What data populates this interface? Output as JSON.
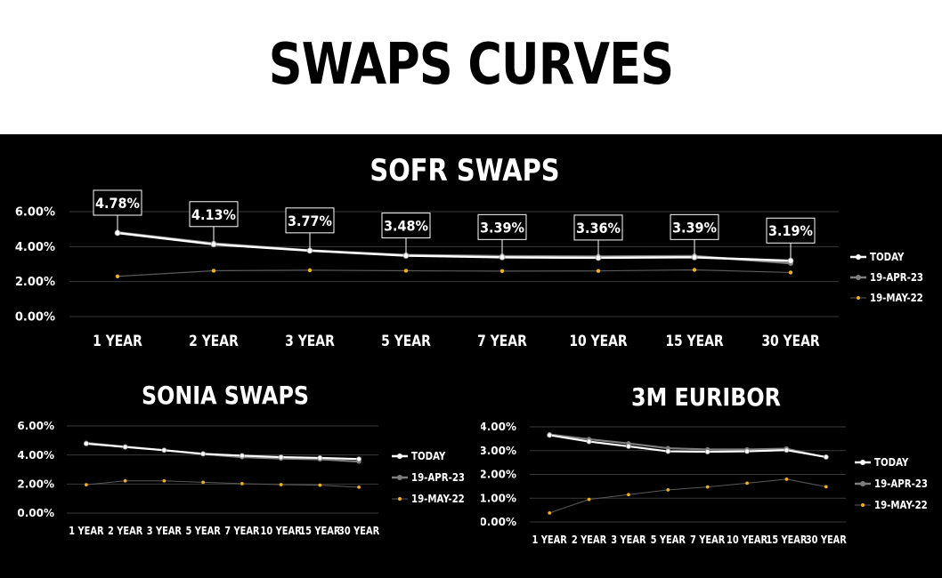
{
  "page_title": "SWAPS CURVES",
  "colors": {
    "today": "#ffffff",
    "apr": "#7f7f7f",
    "may": "#f2b01e",
    "background": "#000000",
    "grid": "#3a3a3a"
  },
  "chart_data": [
    {
      "id": "sofr",
      "type": "line",
      "title": "SOFR SWAPS",
      "categories": [
        "1 YEAR",
        "2 YEAR",
        "3 YEAR",
        "5 YEAR",
        "7 YEAR",
        "10 YEAR",
        "15 YEAR",
        "30 YEAR"
      ],
      "y_ticks": [
        "0.00%",
        "2.00%",
        "4.00%",
        "6.00%"
      ],
      "ylim": [
        0,
        6
      ],
      "series": [
        {
          "name": "TODAY",
          "values": [
            4.78,
            4.13,
            3.77,
            3.48,
            3.39,
            3.36,
            3.39,
            3.19
          ]
        },
        {
          "name": "19-APR-23",
          "values": [
            4.82,
            4.18,
            3.78,
            3.52,
            3.46,
            3.43,
            3.46,
            3.05
          ]
        },
        {
          "name": "19-MAY-22",
          "values": [
            2.3,
            2.62,
            2.65,
            2.62,
            2.6,
            2.61,
            2.67,
            2.52
          ]
        }
      ],
      "data_labels": [
        "4.78%",
        "4.13%",
        "3.77%",
        "3.48%",
        "3.39%",
        "3.36%",
        "3.39%",
        "3.19%"
      ],
      "grid": true,
      "legend": "right"
    },
    {
      "id": "sonia",
      "type": "line",
      "title": "SONIA SWAPS",
      "categories": [
        "1 YEAR",
        "2 YEAR",
        "3 YEAR",
        "5 YEAR",
        "7 YEAR",
        "10 YEAR",
        "15 YEAR",
        "30 YEAR"
      ],
      "y_ticks": [
        "0.00%",
        "2.00%",
        "4.00%",
        "6.00%"
      ],
      "ylim": [
        0,
        6
      ],
      "series": [
        {
          "name": "TODAY",
          "values": [
            4.78,
            4.55,
            4.33,
            4.08,
            3.95,
            3.85,
            3.8,
            3.72
          ]
        },
        {
          "name": "19-APR-23",
          "values": [
            4.83,
            4.58,
            4.33,
            4.05,
            3.85,
            3.75,
            3.7,
            3.55
          ]
        },
        {
          "name": "19-MAY-22",
          "values": [
            1.95,
            2.22,
            2.22,
            2.12,
            2.03,
            1.96,
            1.92,
            1.78
          ]
        }
      ],
      "grid": true,
      "legend": "right"
    },
    {
      "id": "euribor",
      "type": "line",
      "title": "3M EURIBOR",
      "categories": [
        "1 YEAR",
        "2 YEAR",
        "3 YEAR",
        "5 YEAR",
        "7 YEAR",
        "10 YEAR",
        "15 YEAR",
        "30 YEAR"
      ],
      "y_ticks": [
        "0.00%",
        "1.00%",
        "2.00%",
        "3.00%",
        "4.00%"
      ],
      "ylim": [
        0,
        4
      ],
      "series": [
        {
          "name": "TODAY",
          "values": [
            3.65,
            3.38,
            3.18,
            2.97,
            2.95,
            2.97,
            3.02,
            2.73
          ]
        },
        {
          "name": "19-APR-23",
          "values": [
            3.68,
            3.48,
            3.3,
            3.1,
            3.05,
            3.05,
            3.08,
            2.72
          ]
        },
        {
          "name": "19-MAY-22",
          "values": [
            0.38,
            0.95,
            1.15,
            1.35,
            1.47,
            1.63,
            1.8,
            1.48
          ]
        }
      ],
      "grid": true,
      "legend": "right"
    }
  ]
}
